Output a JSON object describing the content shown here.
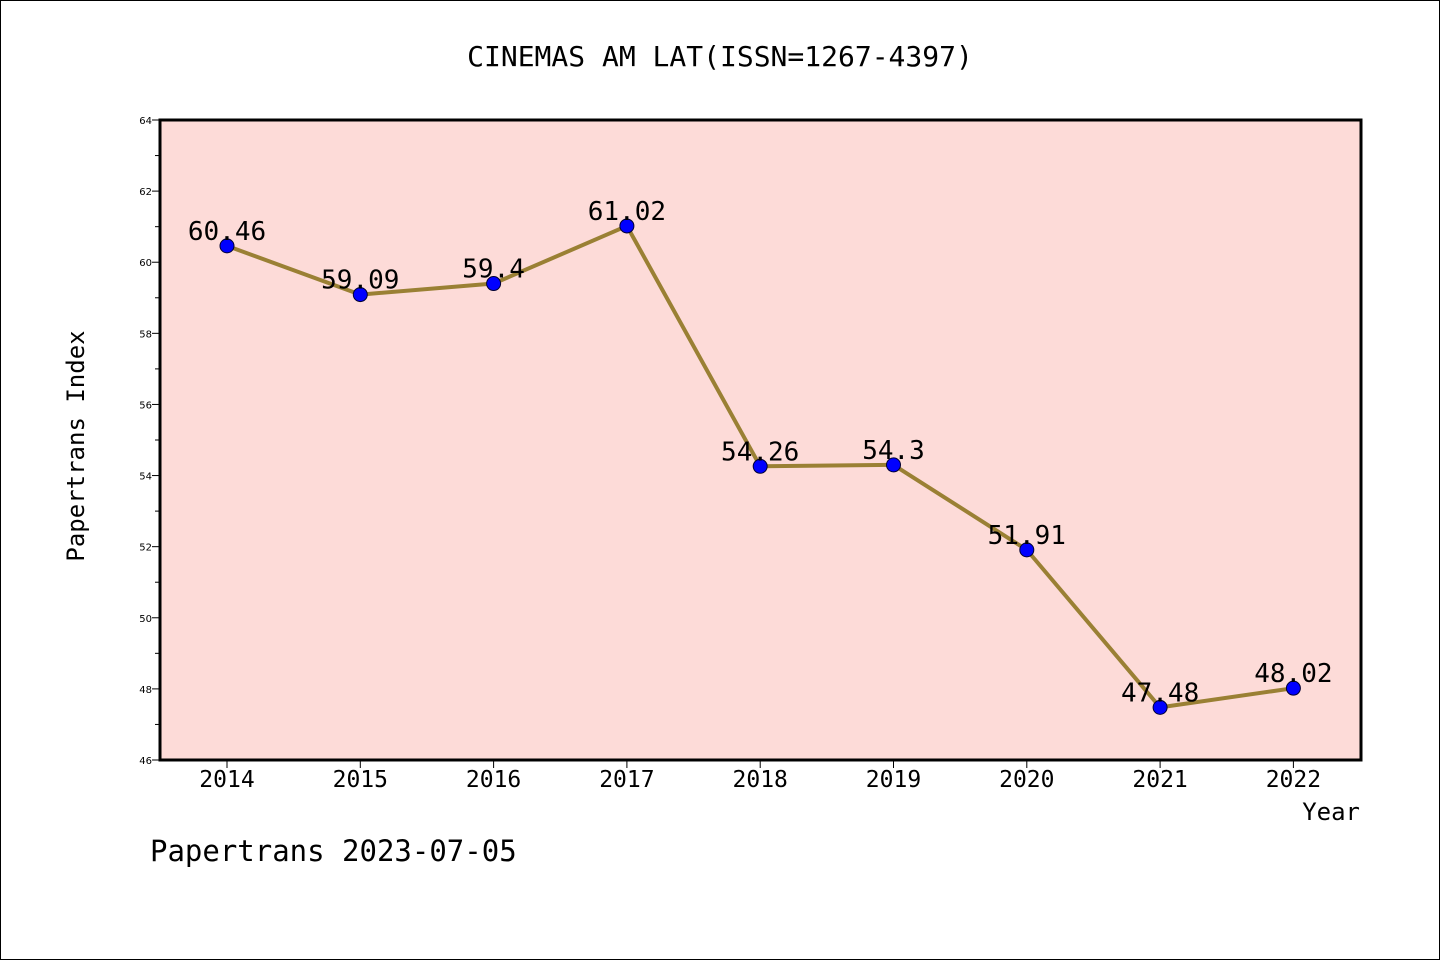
{
  "chart_data": {
    "type": "line",
    "title": "CINEMAS AM LAT(ISSN=1267-4397)",
    "xlabel": "Year",
    "ylabel": "Papertrans Index",
    "categories": [
      "2014",
      "2015",
      "2016",
      "2017",
      "2018",
      "2019",
      "2020",
      "2021",
      "2022"
    ],
    "series": [
      {
        "values": [
          60.46,
          59.09,
          59.4,
          61.02,
          54.26,
          54.3,
          51.91,
          47.48,
          48.02
        ],
        "data_labels": [
          "60.46",
          "59.09",
          "59.4",
          "61.02",
          "54.26",
          "54.3",
          "51.91",
          "47.48",
          "48.02"
        ]
      }
    ],
    "ylim": [
      46,
      64
    ],
    "yticks": [
      46,
      48,
      50,
      52,
      54,
      56,
      58,
      60,
      62,
      64
    ],
    "grid": false,
    "legend": "none",
    "colors": {
      "plot_background": "#fddbd8",
      "line": "#9a8034",
      "marker": "#0000ff",
      "axis": "#000000"
    }
  },
  "footer": {
    "text": "Papertrans 2023-07-05"
  }
}
